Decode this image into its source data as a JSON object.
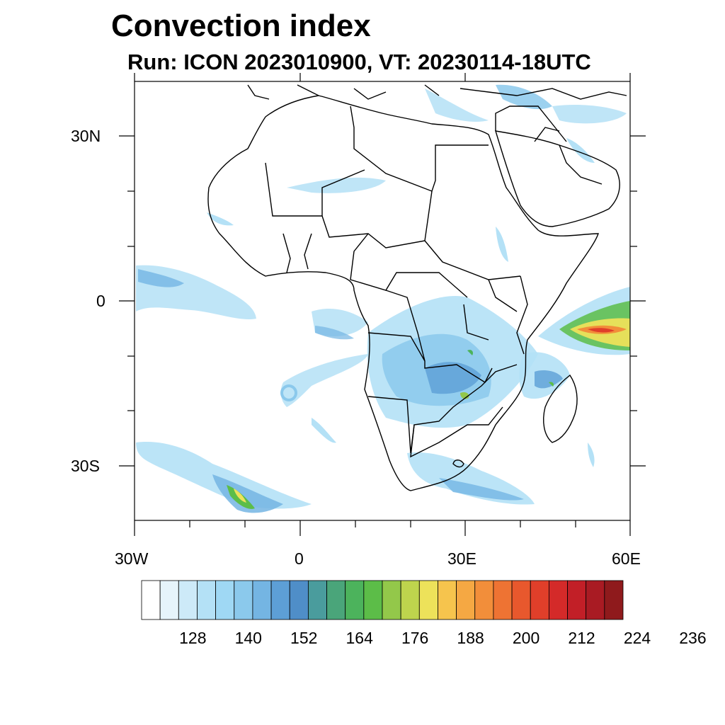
{
  "title": "Convection index",
  "subtitle": "Run: ICON 2023010900,  VT: 20230114-18UTC",
  "map": {
    "region": "Africa",
    "lon_range": [
      -30,
      60
    ],
    "lat_range": [
      -40,
      40
    ],
    "x_tick_labels": [
      "30W",
      "0",
      "30E",
      "60E"
    ],
    "y_tick_labels": [
      "30N",
      "0",
      "30S"
    ]
  },
  "colorbar": {
    "tick_labels": [
      "128",
      "140",
      "152",
      "164",
      "176",
      "188",
      "200",
      "212",
      "224",
      "236"
    ],
    "colors": [
      "#ffffff",
      "#e6f4fb",
      "#cdeaf8",
      "#b4e1f6",
      "#9fd8f4",
      "#8bc9ec",
      "#74b5e3",
      "#5d9fd6",
      "#4f8ec8",
      "#4a9c9d",
      "#4aa57a",
      "#4cb35c",
      "#5cbd48",
      "#93c84a",
      "#bed44d",
      "#ede25a",
      "#f6c44d",
      "#f5a843",
      "#f28e3a",
      "#ee7333",
      "#e8582d",
      "#e03f2a",
      "#d42a29",
      "#c21f27",
      "#a91b23",
      "#8f1a1c"
    ]
  },
  "map_colors": {
    "light_blue": "#b4e1f6",
    "mid_blue": "#74b5e3",
    "green": "#5cbd48",
    "yellow": "#ede25a",
    "orange": "#f28e3a",
    "red": "#e03f2a"
  }
}
